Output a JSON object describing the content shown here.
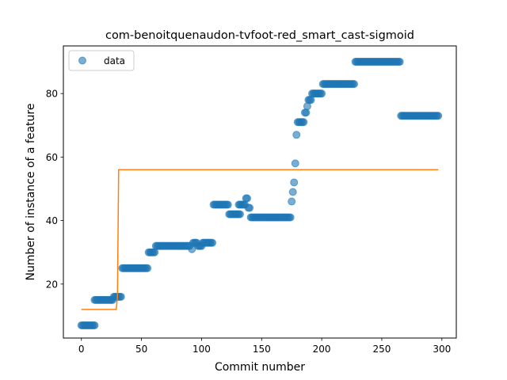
{
  "chart_data": {
    "type": "scatter",
    "title": "com-benoitquenaudon-tvfoot-red_smart_cast-sigmoid",
    "xlabel": "Commit number",
    "ylabel": "Number of instance of a feature",
    "xlim": [
      -15,
      312
    ],
    "ylim": [
      3,
      95
    ],
    "xticks": [
      0,
      50,
      100,
      150,
      200,
      250,
      300
    ],
    "yticks": [
      20,
      40,
      60,
      80
    ],
    "grid": false,
    "legend_position": "top-left",
    "legend": [
      "data"
    ],
    "series": [
      {
        "name": "data",
        "kind": "scatter",
        "color": "#1f77b4",
        "segments": [
          {
            "x_start": 0,
            "x_end": 11,
            "y": 7
          },
          {
            "x_start": 11,
            "x_end": 26,
            "y": 15
          },
          {
            "x_start": 27,
            "x_end": 33,
            "y": 16
          },
          {
            "x_start": 34,
            "x_end": 55,
            "y": 25
          },
          {
            "x_start": 56,
            "x_end": 61,
            "y": 30
          },
          {
            "x_start": 62,
            "x_end": 90,
            "y": 32
          },
          {
            "x_start": 92,
            "x_end": 92,
            "y": 31
          },
          {
            "x_start": 93,
            "x_end": 96,
            "y": 33
          },
          {
            "x_start": 97,
            "x_end": 100,
            "y": 32
          },
          {
            "x_start": 101,
            "x_end": 109,
            "y": 33
          },
          {
            "x_start": 110,
            "x_end": 122,
            "y": 45
          },
          {
            "x_start": 123,
            "x_end": 132,
            "y": 42
          },
          {
            "x_start": 131,
            "x_end": 134,
            "y": 45
          },
          {
            "x_start": 135,
            "x_end": 136,
            "y": 45
          },
          {
            "x_start": 137,
            "x_end": 138,
            "y": 47
          },
          {
            "x_start": 139,
            "x_end": 140,
            "y": 44
          },
          {
            "x_start": 141,
            "x_end": 174,
            "y": 41
          },
          {
            "x_start": 175,
            "x_end": 175,
            "y": 46
          },
          {
            "x_start": 176,
            "x_end": 176,
            "y": 49
          },
          {
            "x_start": 177,
            "x_end": 177,
            "y": 52
          },
          {
            "x_start": 178,
            "x_end": 178,
            "y": 58
          },
          {
            "x_start": 179,
            "x_end": 179,
            "y": 67
          },
          {
            "x_start": 180,
            "x_end": 185,
            "y": 71
          },
          {
            "x_start": 186,
            "x_end": 187,
            "y": 74
          },
          {
            "x_start": 188,
            "x_end": 188,
            "y": 76
          },
          {
            "x_start": 189,
            "x_end": 191,
            "y": 78
          },
          {
            "x_start": 192,
            "x_end": 200,
            "y": 80
          },
          {
            "x_start": 201,
            "x_end": 227,
            "y": 83
          },
          {
            "x_start": 228,
            "x_end": 265,
            "y": 90
          },
          {
            "x_start": 266,
            "x_end": 297,
            "y": 73
          }
        ]
      },
      {
        "name": "",
        "kind": "line",
        "color": "#ff7f0e",
        "x": [
          0,
          29,
          30,
          31,
          297
        ],
        "y": [
          12,
          12,
          16,
          56,
          56
        ]
      }
    ]
  }
}
